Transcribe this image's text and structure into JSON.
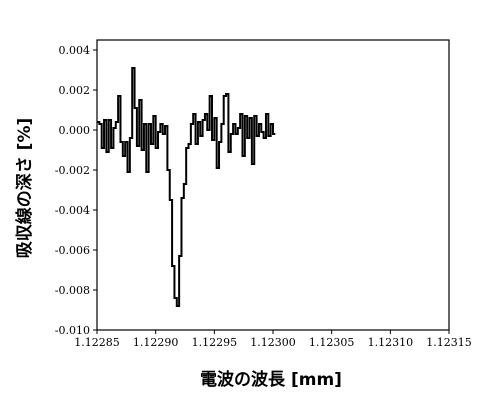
{
  "chart_data": {
    "type": "line",
    "step": true,
    "xlabel": "電波の波長 [mm]",
    "ylabel": "吸収線の深さ [%]",
    "xlim": [
      1.12285,
      1.12315
    ],
    "ylim": [
      -0.01,
      0.0045
    ],
    "x_ticks": [
      "1.12285",
      "1.12290",
      "1.12295",
      "1.12300",
      "1.12305",
      "1.12310",
      "1.12315"
    ],
    "y_ticks": [
      "-0.010",
      "-0.008",
      "-0.006",
      "-0.004",
      "-0.002",
      "0.000",
      "0.002",
      "0.004"
    ],
    "x_tick_values": [
      1.12285,
      1.1229,
      1.12295,
      1.123,
      1.12305,
      1.1231,
      1.12315
    ],
    "y_tick_values": [
      -0.01,
      -0.008,
      -0.006,
      -0.004,
      -0.002,
      0.0,
      0.002,
      0.004
    ],
    "grid": false,
    "series": [
      {
        "color": "#000000",
        "x_start": 1.12285,
        "x_step": 2e-06,
        "values": [
          0.0004,
          0.0003,
          -0.0009,
          0.0005,
          -0.0011,
          0.0005,
          -0.0009,
          0.0001,
          0.0004,
          0.0017,
          -0.0006,
          -0.0013,
          -0.0006,
          -0.0021,
          -0.0004,
          0.0031,
          0.0011,
          -0.0008,
          0.0015,
          -0.001,
          0.0003,
          -0.0021,
          0.0003,
          -0.0007,
          0.0007,
          -0.0009,
          -0.0001,
          0.0003,
          -0.0002,
          0.0002,
          -0.002,
          -0.0035,
          -0.0068,
          -0.0084,
          -0.0088,
          -0.0063,
          -0.0034,
          -0.0027,
          -0.0009,
          -0.0007,
          0.0003,
          0.0008,
          -0.0007,
          0.0004,
          -0.0003,
          0.0005,
          0.0008,
          0.0,
          0.0017,
          -0.0005,
          0.0006,
          -0.0019,
          -0.0006,
          0.0003,
          0.0017,
          0.0018,
          -0.0011,
          -0.0002,
          0.0003,
          -0.0002,
          0.0001,
          0.0008,
          -0.0013,
          0.0007,
          -0.0004,
          0.0006,
          -0.0017,
          0.0007,
          -0.0003,
          0.0003,
          -0.0001,
          -0.0004,
          0.0008,
          -0.0003,
          0.0003,
          -0.0002
        ]
      }
    ]
  }
}
